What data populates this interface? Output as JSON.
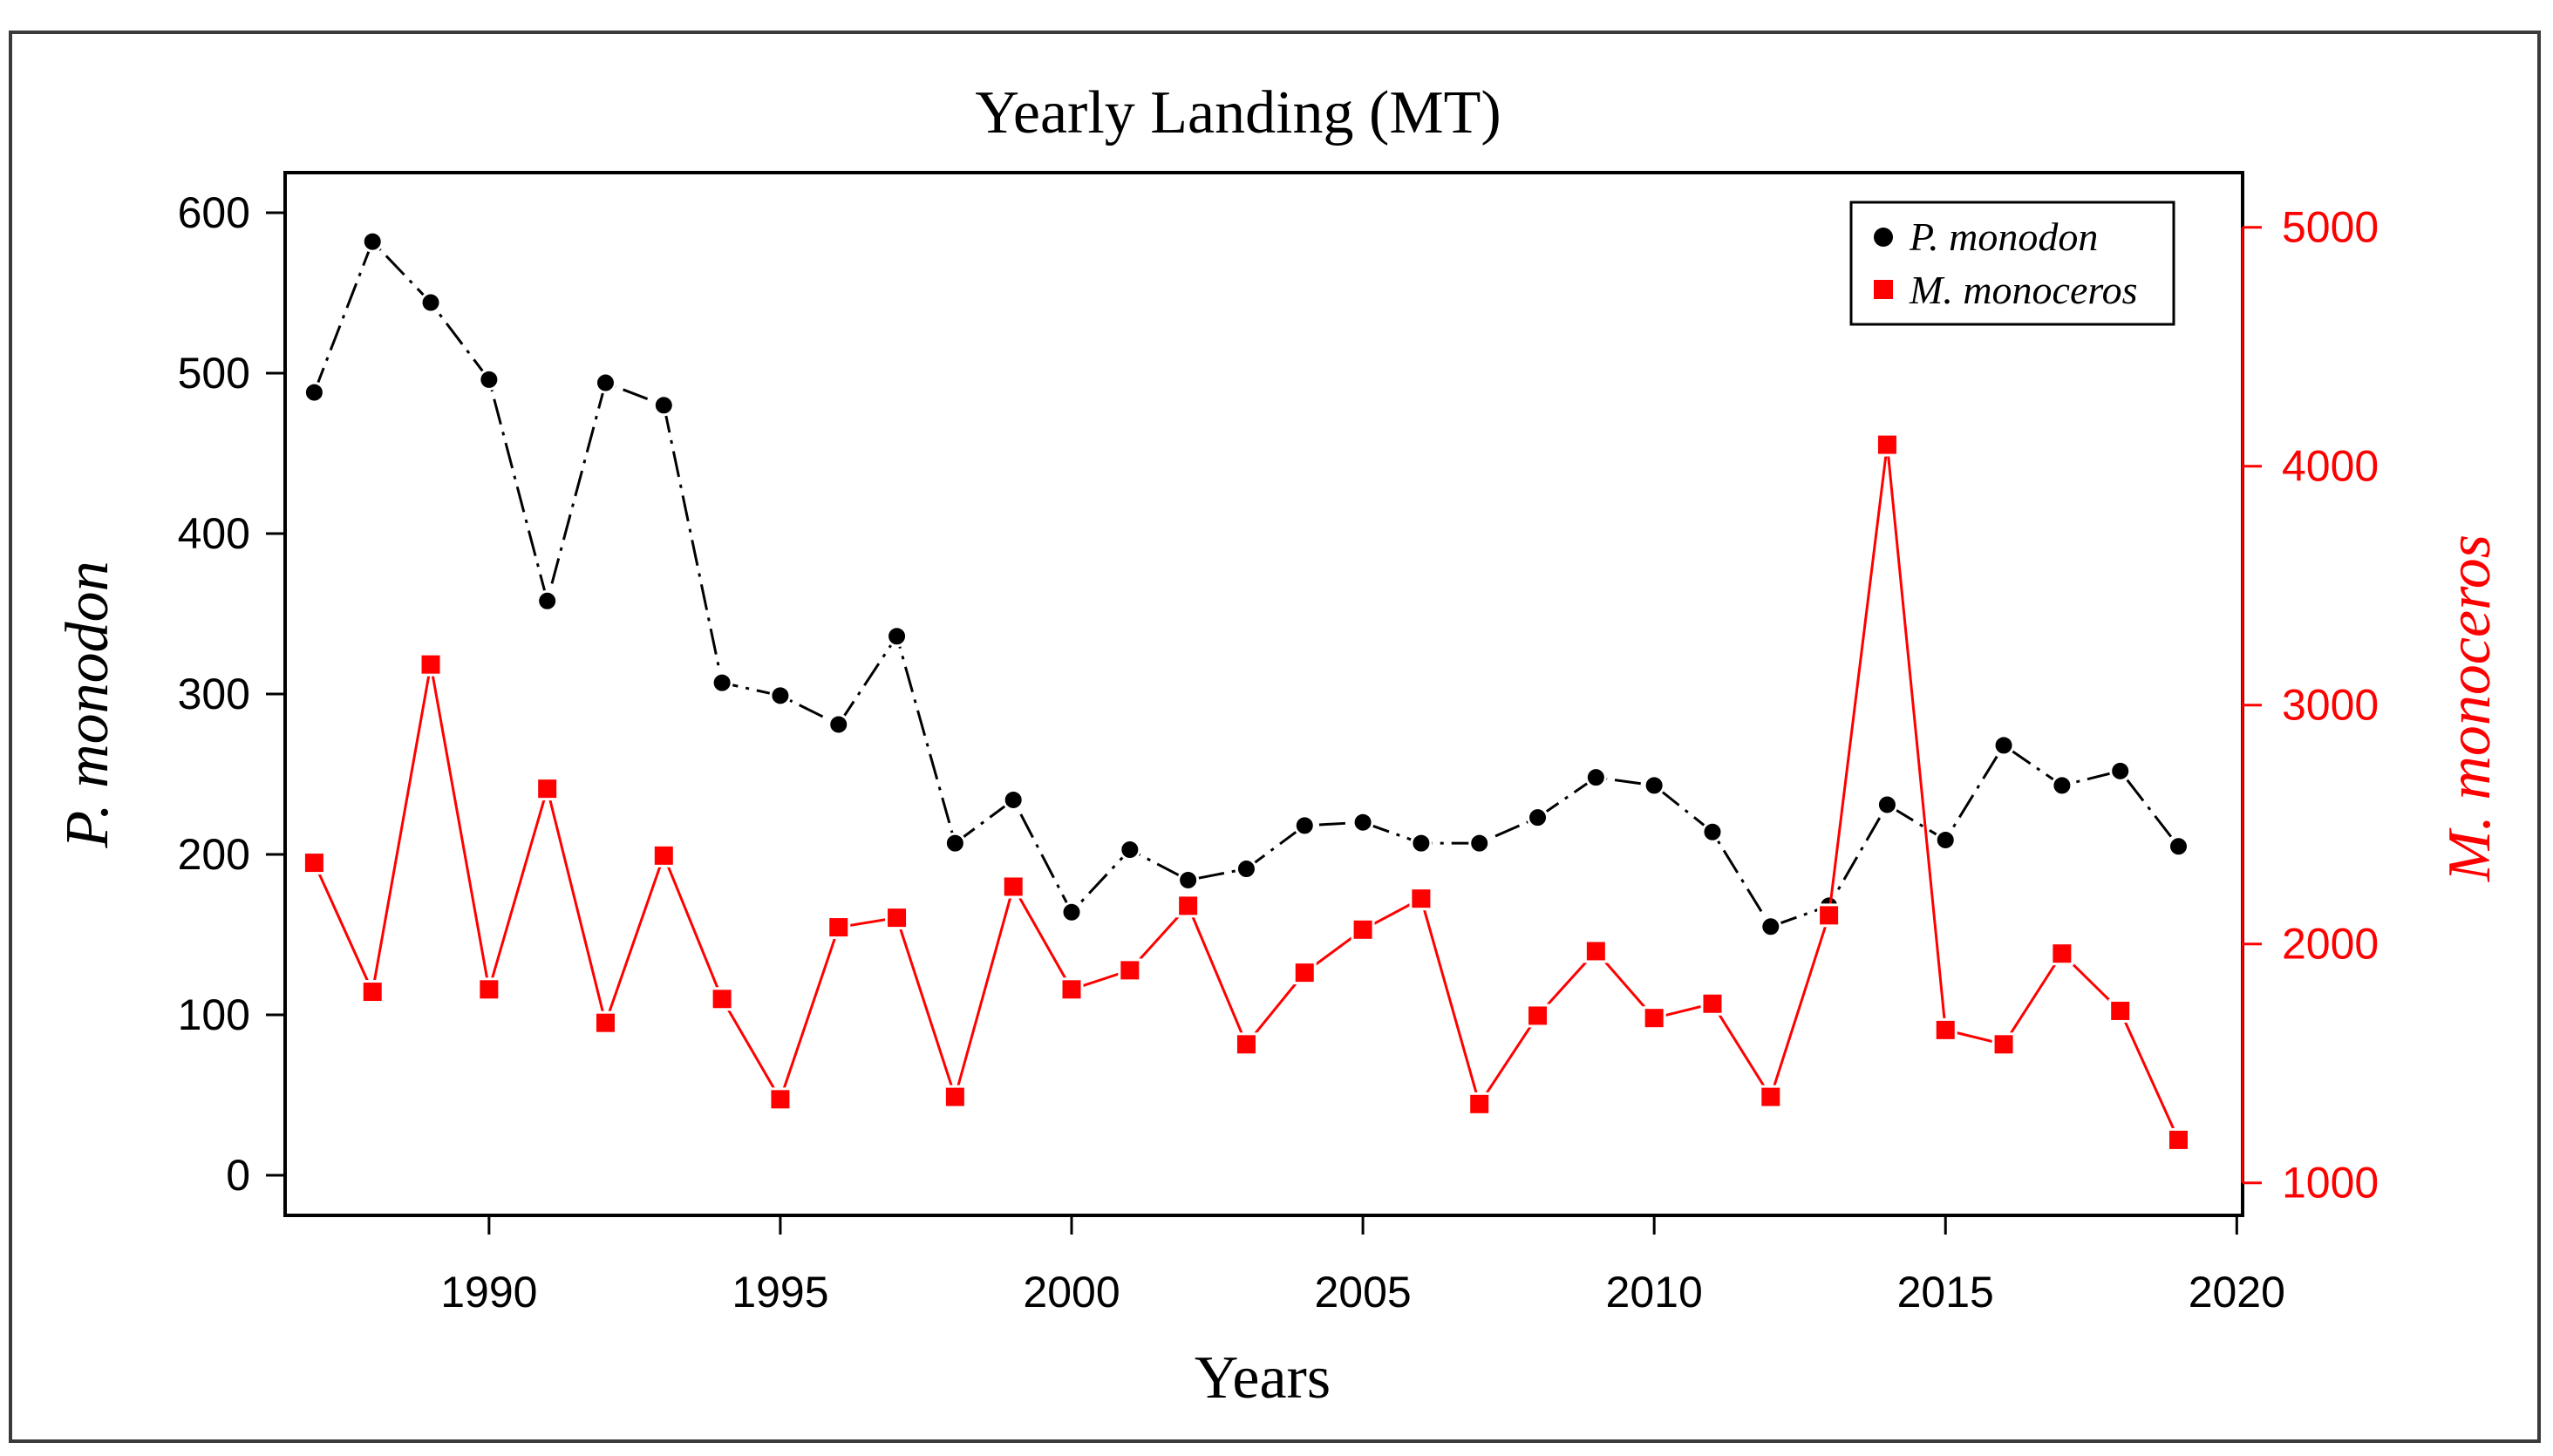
{
  "chart_data": {
    "type": "line",
    "title": "Yearly Landing (MT)",
    "xlabel": "Years",
    "ylabel_left": "P. monodon",
    "ylabel_right": "M. monoceros",
    "xlim": [
      1986.5,
      2020.1
    ],
    "ylim_left": [
      -25,
      625
    ],
    "ylim_right": [
      864,
      5229
    ],
    "x_ticks": [
      1990,
      1995,
      2000,
      2005,
      2010,
      2015,
      2020
    ],
    "y_left_ticks": [
      0,
      100,
      200,
      300,
      400,
      500,
      600
    ],
    "y_right_ticks": [
      1000,
      2000,
      3000,
      4000,
      5000
    ],
    "legend_position": "top-right",
    "x": [
      1987,
      1988,
      1989,
      1990,
      1991,
      1992,
      1993,
      1994,
      1995,
      1996,
      1997,
      1998,
      1999,
      2000,
      2001,
      2002,
      2003,
      2004,
      2005,
      2006,
      2007,
      2008,
      2009,
      2010,
      2011,
      2012,
      2013,
      2014,
      2015,
      2016,
      2017,
      2018,
      2019
    ],
    "series": [
      {
        "name": "P. monodon",
        "axis": "left",
        "color": "#000000",
        "marker": "circle",
        "line_style": "dashdot",
        "values": [
          488,
          582,
          544,
          496,
          358,
          494,
          480,
          307,
          299,
          281,
          336,
          207,
          234,
          164,
          203,
          184,
          191,
          218,
          220,
          207,
          207,
          223,
          248,
          243,
          214,
          155,
          168,
          231,
          209,
          268,
          243,
          252,
          205
        ]
      },
      {
        "name": "M. monoceros",
        "axis": "right",
        "color": "#ff0000",
        "marker": "square",
        "line_style": "solid",
        "values": [
          2340,
          1800,
          3170,
          1810,
          2650,
          1670,
          2370,
          1770,
          1350,
          2070,
          2110,
          1360,
          2240,
          1810,
          1890,
          2160,
          1580,
          1880,
          2060,
          2190,
          1330,
          1700,
          1970,
          1690,
          1750,
          1360,
          2120,
          4090,
          1640,
          1580,
          1960,
          1720,
          1180
        ]
      }
    ]
  }
}
